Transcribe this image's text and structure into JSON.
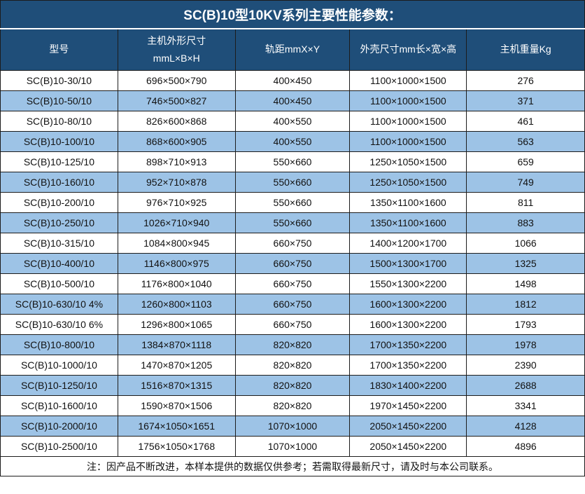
{
  "title": "SC(B)10型10KV系列主要性能参数：",
  "table": {
    "headers": [
      "型号",
      "主机外形尺寸\nmmL×B×H",
      "轨距mmX×Y",
      "外壳尺寸mm长×宽×高",
      "主机重量Kg"
    ],
    "rows": [
      [
        "SC(B)10-30/10",
        "696×500×790",
        "400×450",
        "1100×1000×1500",
        "276"
      ],
      [
        "SC(B)10-50/10",
        "746×500×827",
        "400×450",
        "1100×1000×1500",
        "371"
      ],
      [
        "SC(B)10-80/10",
        "826×600×868",
        "400×550",
        "1100×1000×1500",
        "461"
      ],
      [
        "SC(B)10-100/10",
        "868×600×905",
        "400×550",
        "1100×1000×1500",
        "563"
      ],
      [
        "SC(B)10-125/10",
        "898×710×913",
        "550×660",
        "1250×1050×1500",
        "659"
      ],
      [
        "SC(B)10-160/10",
        "952×710×878",
        "550×660",
        "1250×1050×1500",
        "749"
      ],
      [
        "SC(B)10-200/10",
        "976×710×925",
        "550×660",
        "1350×1100×1600",
        "811"
      ],
      [
        "SC(B)10-250/10",
        "1026×710×940",
        "550×660",
        "1350×1100×1600",
        "883"
      ],
      [
        "SC(B)10-315/10",
        "1084×800×945",
        "660×750",
        "1400×1200×1700",
        "1066"
      ],
      [
        "SC(B)10-400/10",
        "1146×800×975",
        "660×750",
        "1500×1300×1700",
        "1325"
      ],
      [
        "SC(B)10-500/10",
        "1176×800×1040",
        "660×750",
        "1550×1300×2200",
        "1498"
      ],
      [
        "SC(B)10-630/10 4%",
        "1260×800×1103",
        "660×750",
        "1600×1300×2200",
        "1812"
      ],
      [
        "SC(B)10-630/10 6%",
        "1296×800×1065",
        "660×750",
        "1600×1300×2200",
        "1793"
      ],
      [
        "SC(B)10-800/10",
        "1384×870×1118",
        "820×820",
        "1700×1350×2200",
        "1978"
      ],
      [
        "SC(B)10-1000/10",
        "1470×870×1205",
        "820×820",
        "1700×1350×2200",
        "2390"
      ],
      [
        "SC(B)10-1250/10",
        "1516×870×1315",
        "820×820",
        "1830×1400×2200",
        "2688"
      ],
      [
        "SC(B)10-1600/10",
        "1590×870×1506",
        "820×820",
        "1970×1450×2200",
        "3341"
      ],
      [
        "SC(B)10-2000/10",
        "1674×1050×1651",
        "1070×1000",
        "2050×1450×2200",
        "4128"
      ],
      [
        "SC(B)10-2500/10",
        "1756×1050×1768",
        "1070×1000",
        "2050×1450×2200",
        "4896"
      ]
    ],
    "note": "注：因产品不断改进，本样本提供的数据仅供参考；若需取得最新尺寸，请及时与本公司联系。"
  },
  "colors": {
    "header_bg": "#1F4E79",
    "row_alt_bg": "#9DC3E6",
    "border": "#1C1C1C",
    "header_text": "#FFFFFF"
  }
}
